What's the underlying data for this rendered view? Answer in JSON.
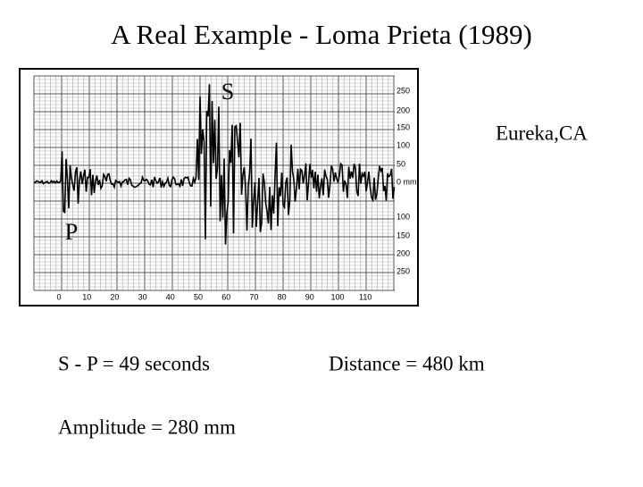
{
  "title": "A Real Example - Loma Prieta (1989)",
  "figure": {
    "s_label": "S",
    "p_label": "P",
    "x_labels": [
      "0",
      "10",
      "20",
      "30",
      "40",
      "50",
      "60",
      "70",
      "80",
      "90",
      "100",
      "110"
    ],
    "y_labels": [
      "250",
      "200",
      "150",
      "100",
      "50",
      "0 mm",
      "100",
      "150",
      "200",
      "250"
    ]
  },
  "station": "Eureka,CA",
  "notes": [
    "S - P = 49 seconds",
    "Distance = 480 km",
    "Amplitude = 280 mm"
  ]
}
